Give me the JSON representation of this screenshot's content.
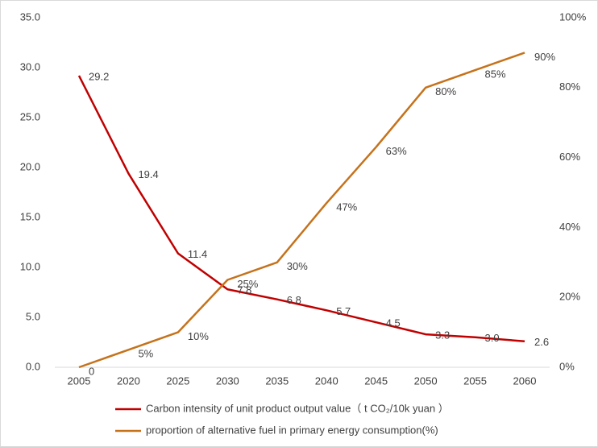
{
  "chart_data": {
    "type": "line",
    "categories": [
      "2005",
      "2020",
      "2025",
      "2030",
      "2035",
      "2040",
      "2045",
      "2050",
      "2055",
      "2060"
    ],
    "series": [
      {
        "name": "Carbon intensity of unit product output value（ t CO₂/10k yuan ）",
        "color": "#c00000",
        "axis": "y",
        "values": [
          29.2,
          19.4,
          11.4,
          7.8,
          6.8,
          5.7,
          4.5,
          3.3,
          3.0,
          2.6
        ],
        "value_labels": [
          "29.2",
          "19.4",
          "11.4",
          "7.8",
          "6.8",
          "5.7",
          "4.5",
          "3.3",
          "3.0",
          "2.6"
        ]
      },
      {
        "name": "proportion of alternative fuel in primary energy consumption(%)",
        "color": "#c5721b",
        "axis": "y2",
        "values": [
          0,
          5,
          10,
          25,
          30,
          47,
          63,
          80,
          85,
          90
        ],
        "value_labels": [
          "0",
          "5%",
          "10%",
          "25%",
          "30%",
          "47%",
          "63%",
          "80%",
          "85%",
          "90%"
        ]
      }
    ],
    "ylim": [
      0,
      35
    ],
    "yticks": [
      {
        "value": 0,
        "label": "0.0"
      },
      {
        "value": 5,
        "label": "5.0"
      },
      {
        "value": 10,
        "label": "10.0"
      },
      {
        "value": 15,
        "label": "15.0"
      },
      {
        "value": 20,
        "label": "20.0"
      },
      {
        "value": 25,
        "label": "25.0"
      },
      {
        "value": 30,
        "label": "30.0"
      },
      {
        "value": 35,
        "label": "35.0"
      }
    ],
    "y2lim": [
      0,
      100
    ],
    "y2ticks": [
      {
        "value": 0,
        "label": "0%"
      },
      {
        "value": 20,
        "label": "20%"
      },
      {
        "value": 40,
        "label": "40%"
      },
      {
        "value": 60,
        "label": "60%"
      },
      {
        "value": 80,
        "label": "80%"
      },
      {
        "value": 100,
        "label": "100%"
      }
    ],
    "legend": "bottom"
  }
}
